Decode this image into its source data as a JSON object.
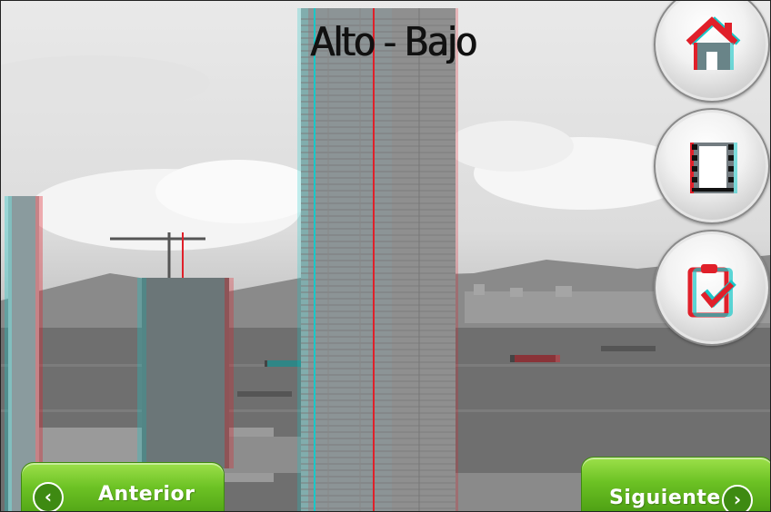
{
  "title": "Alto - Bajo",
  "side_buttons": [
    {
      "icon": "home-icon"
    },
    {
      "icon": "film-icon"
    },
    {
      "icon": "clipboard-check-icon"
    }
  ],
  "nav": {
    "prev_label": "Anterior",
    "next_label": "Siguiente",
    "prev_chevron": "‹",
    "next_chevron": "›"
  },
  "colors": {
    "button_green": "#6cc224",
    "anaglyph_red": "#e0202a",
    "anaglyph_cyan": "#19c8c8"
  }
}
